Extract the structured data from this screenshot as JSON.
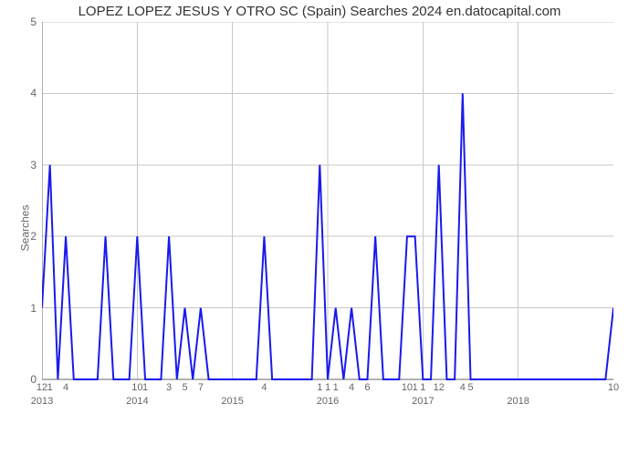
{
  "chart": {
    "type": "line",
    "title": "LOPEZ LOPEZ JESUS Y OTRO SC (Spain) Searches 2024 en.datocapital.com",
    "title_fontsize": 15,
    "ylabel": "Searches",
    "label_fontsize": 12,
    "ylim": [
      0,
      5
    ],
    "ytick_step": 1,
    "yticks": [
      0,
      1,
      2,
      3,
      4,
      5
    ],
    "background_color": "#ffffff",
    "grid_color": "#c8c8c8",
    "axis_color": "#666666",
    "line_color": "#1a1aee",
    "line_width": 2,
    "xlabel_year_ticks": [
      "2013",
      "2014",
      "2015",
      "2016",
      "2017",
      "2018"
    ],
    "xlabel_year_positions": [
      0,
      12,
      24,
      36,
      48,
      60
    ],
    "x_point_labels": {
      "0": "12",
      "1": "1",
      "3": "4",
      "12": "10",
      "13": "1",
      "16": "3",
      "18": "5",
      "20": "7",
      "28": "4",
      "35": "1",
      "36": "1",
      "37": "1",
      "39": "4",
      "41": "6",
      "46": "10",
      "47": "1",
      "48": "1",
      "50": "12",
      "53": "4",
      "54": "5",
      "72": "10"
    },
    "n_points": 73,
    "values": [
      1,
      3,
      0,
      2,
      0,
      0,
      0,
      0,
      2,
      0,
      0,
      0,
      2,
      0,
      0,
      0,
      2,
      0,
      1,
      0,
      1,
      0,
      0,
      0,
      0,
      0,
      0,
      0,
      2,
      0,
      0,
      0,
      0,
      0,
      0,
      3,
      0,
      1,
      0,
      1,
      0,
      0,
      2,
      0,
      0,
      0,
      2,
      2,
      0,
      0,
      3,
      0,
      0,
      4,
      0,
      0,
      0,
      0,
      0,
      0,
      0,
      0,
      0,
      0,
      0,
      0,
      0,
      0,
      0,
      0,
      0,
      0,
      1
    ]
  }
}
